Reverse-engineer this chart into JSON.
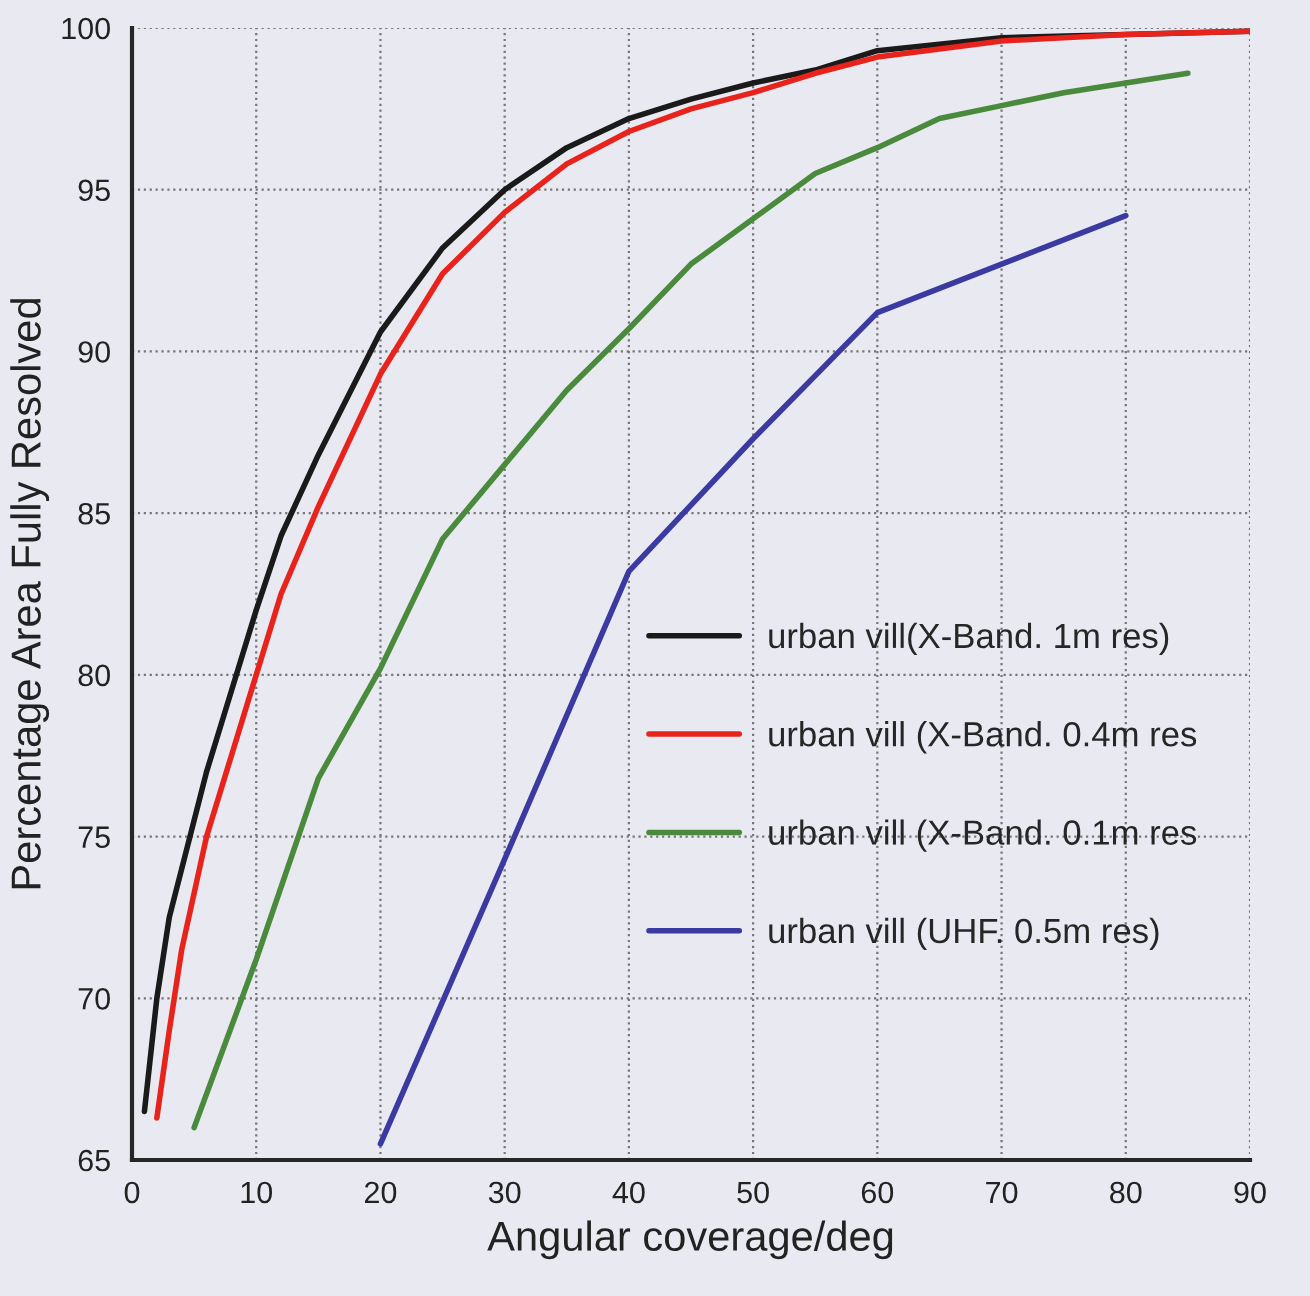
{
  "chart_data": {
    "type": "line",
    "xlabel": "Angular coverage/deg",
    "ylabel": "Percentage Area Fully Resolved",
    "xlim": [
      0,
      90
    ],
    "ylim": [
      65,
      100
    ],
    "xticks": [
      0,
      10,
      20,
      30,
      40,
      50,
      60,
      70,
      80,
      90
    ],
    "yticks": [
      65,
      70,
      75,
      80,
      85,
      90,
      95,
      100
    ],
    "grid": true,
    "legend": "right",
    "line_style": "solid",
    "series": [
      {
        "name": "urban vill(X-Band. 1m res)",
        "color": "#1a1a1a",
        "x": [
          1,
          2,
          3,
          5,
          6,
          8,
          10,
          12,
          15,
          20,
          25,
          30,
          35,
          40,
          45,
          50,
          55,
          60,
          70,
          80,
          90
        ],
        "values": [
          66.5,
          70,
          72.5,
          75.5,
          77,
          79.5,
          82,
          84.3,
          86.8,
          90.6,
          93.2,
          95,
          96.3,
          97.2,
          97.8,
          98.3,
          98.7,
          99.3,
          99.7,
          99.8,
          99.9
        ]
      },
      {
        "name": "urban vill (X-Band. 0.4m res",
        "color": "#e8231c",
        "x": [
          2,
          3,
          4,
          6,
          8,
          10,
          12,
          15,
          20,
          25,
          30,
          35,
          40,
          45,
          50,
          55,
          60,
          70,
          80,
          90
        ],
        "values": [
          66.3,
          69,
          71.5,
          75,
          77.5,
          80,
          82.5,
          85.2,
          89.3,
          92.4,
          94.3,
          95.8,
          96.8,
          97.5,
          98,
          98.6,
          99.1,
          99.6,
          99.8,
          99.9
        ]
      },
      {
        "name": "urban vill (X-Band. 0.1m res",
        "color": "#4a8a3c",
        "x": [
          5,
          10,
          15,
          20,
          25,
          30,
          35,
          40,
          45,
          50,
          55,
          60,
          65,
          70,
          75,
          80,
          85
        ],
        "values": [
          66,
          71.2,
          76.8,
          80.2,
          84.2,
          86.5,
          88.8,
          90.7,
          92.7,
          94.1,
          95.5,
          96.3,
          97.2,
          97.6,
          98,
          98.3,
          98.6
        ]
      },
      {
        "name": "urban vill (UHF. 0.5m res)",
        "color": "#3a3aa0",
        "x": [
          20,
          30,
          40,
          50,
          60,
          70,
          80
        ],
        "values": [
          65.5,
          74.3,
          83.2,
          87.3,
          91.2,
          92.7,
          94.2
        ]
      }
    ]
  }
}
